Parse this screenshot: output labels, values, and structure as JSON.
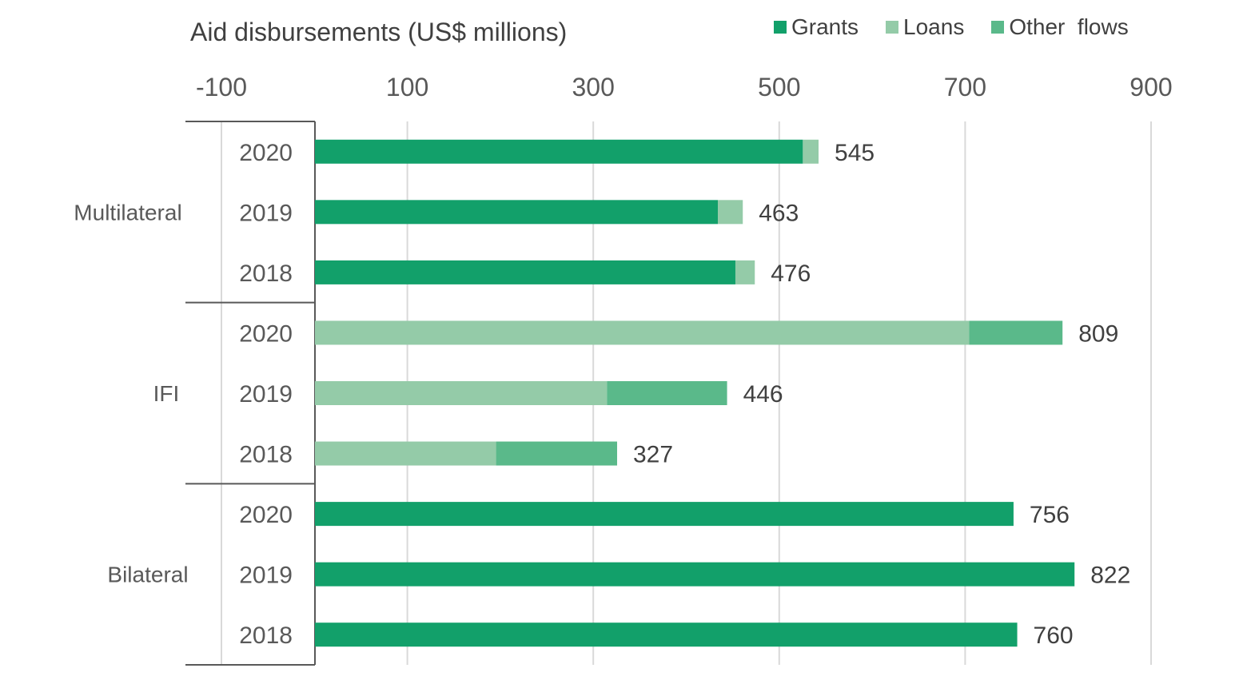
{
  "chart_data": {
    "type": "bar",
    "orientation": "horizontal",
    "stacked": true,
    "title": "Aid disbursements (US$ millions)",
    "xlim": [
      -100,
      900
    ],
    "x_ticks": [
      "-100",
      "100",
      "300",
      "500",
      "700",
      "900"
    ],
    "grid": true,
    "legend_position": "top-right",
    "groups": [
      "Multilateral",
      "IFI",
      "Bilateral"
    ],
    "categories": [
      "2020",
      "2019",
      "2018",
      "2020",
      "2019",
      "2018",
      "2020",
      "2019",
      "2018"
    ],
    "category_group": [
      "Multilateral",
      "Multilateral",
      "Multilateral",
      "IFI",
      "IFI",
      "IFI",
      "Bilateral",
      "Bilateral",
      "Bilateral"
    ],
    "series": [
      {
        "name": "Grants",
        "color": "#12a06a",
        "values": [
          528,
          436,
          455,
          0,
          0,
          0,
          756,
          822,
          760
        ]
      },
      {
        "name": "Loans",
        "color": "#94cba8",
        "values": [
          17,
          27,
          21,
          708,
          316,
          196,
          0,
          0,
          0
        ]
      },
      {
        "name": "Other  flows",
        "color": "#5ab98a",
        "values": [
          0,
          0,
          0,
          101,
          130,
          131,
          0,
          0,
          0
        ]
      }
    ],
    "totals": [
      "545",
      "463",
      "476",
      "809",
      "446",
      "327",
      "756",
      "822",
      "760"
    ]
  }
}
